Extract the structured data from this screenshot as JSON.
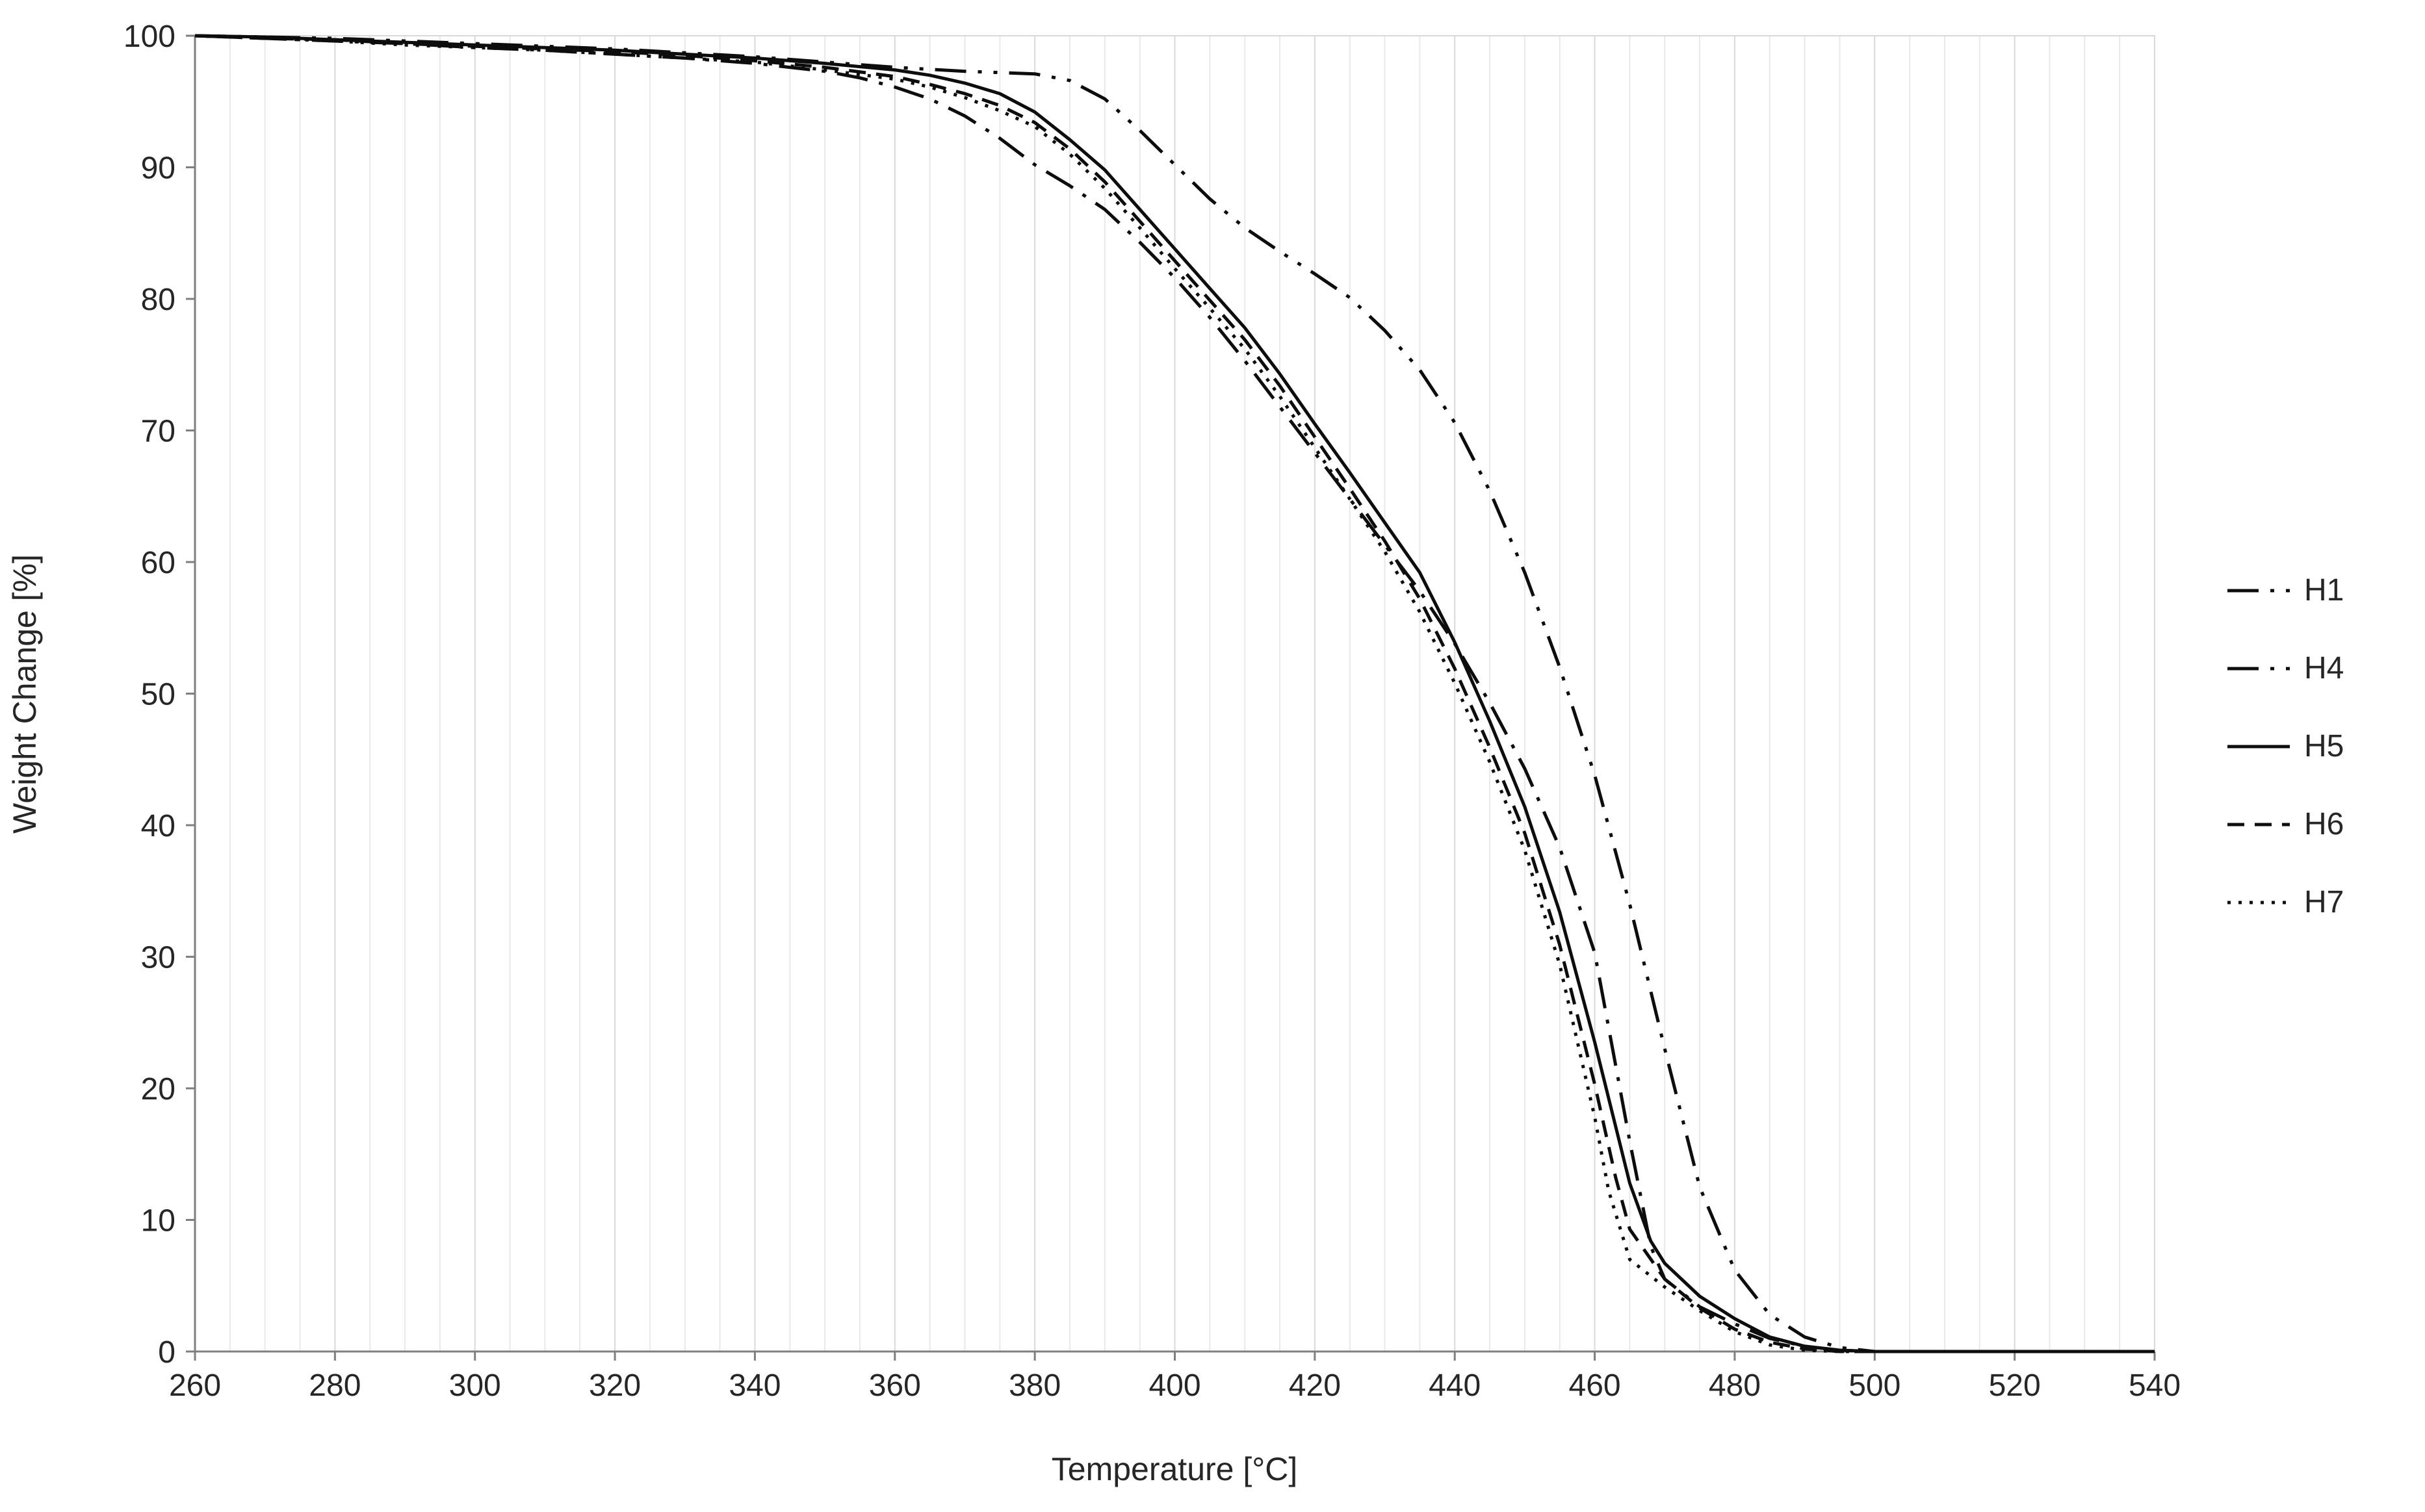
{
  "chart_data": {
    "type": "line",
    "title": "",
    "xlabel": "Temperature [°C]",
    "ylabel": "Weight Change [%]",
    "xlim": [
      260,
      540
    ],
    "ylim": [
      0,
      100
    ],
    "x_ticks": [
      260,
      280,
      300,
      320,
      340,
      360,
      380,
      400,
      420,
      440,
      460,
      480,
      500,
      520,
      540
    ],
    "y_ticks": [
      0,
      10,
      20,
      30,
      40,
      50,
      60,
      70,
      80,
      90,
      100
    ],
    "grid": {
      "vertical_minor_every": 5,
      "vertical_major_every": 20,
      "horizontal": false
    },
    "legend_position": "right",
    "line_color": "#0d0d0d",
    "gridline_minor_color": "#e9e9e9",
    "gridline_major_color": "#d9d9d9",
    "axis_line_color": "#7f7f7f",
    "series": [
      {
        "name": "H1",
        "dash": "dash-dot-dot",
        "points": [
          [
            260,
            100
          ],
          [
            270,
            99.9
          ],
          [
            280,
            99.8
          ],
          [
            290,
            99.6
          ],
          [
            300,
            99.4
          ],
          [
            310,
            99.2
          ],
          [
            320,
            99.0
          ],
          [
            330,
            98.7
          ],
          [
            340,
            98.4
          ],
          [
            350,
            98.0
          ],
          [
            360,
            97.6
          ],
          [
            370,
            97.3
          ],
          [
            375,
            97.2
          ],
          [
            380,
            97.1
          ],
          [
            385,
            96.6
          ],
          [
            390,
            95.2
          ],
          [
            395,
            92.8
          ],
          [
            400,
            90.2
          ],
          [
            405,
            87.6
          ],
          [
            410,
            85.4
          ],
          [
            415,
            83.6
          ],
          [
            420,
            81.9
          ],
          [
            425,
            80.1
          ],
          [
            430,
            77.6
          ],
          [
            435,
            74.6
          ],
          [
            440,
            70.6
          ],
          [
            445,
            65.4
          ],
          [
            450,
            59.2
          ],
          [
            455,
            52.0
          ],
          [
            460,
            43.8
          ],
          [
            465,
            34.0
          ],
          [
            470,
            23.0
          ],
          [
            475,
            12.5
          ],
          [
            480,
            6.2
          ],
          [
            485,
            2.8
          ],
          [
            490,
            1.1
          ],
          [
            495,
            0.3
          ],
          [
            500,
            0
          ],
          [
            510,
            0
          ],
          [
            520,
            0
          ],
          [
            530,
            0
          ],
          [
            540,
            0
          ]
        ]
      },
      {
        "name": "H4",
        "dash": "dash-dot",
        "points": [
          [
            260,
            100
          ],
          [
            270,
            99.8
          ],
          [
            280,
            99.6
          ],
          [
            290,
            99.4
          ],
          [
            300,
            99.1
          ],
          [
            310,
            98.9
          ],
          [
            320,
            98.6
          ],
          [
            330,
            98.3
          ],
          [
            340,
            97.9
          ],
          [
            350,
            97.3
          ],
          [
            355,
            96.8
          ],
          [
            360,
            96.1
          ],
          [
            365,
            95.2
          ],
          [
            370,
            93.9
          ],
          [
            375,
            92.2
          ],
          [
            380,
            90.2
          ],
          [
            385,
            88.6
          ],
          [
            390,
            86.8
          ],
          [
            395,
            84.3
          ],
          [
            400,
            81.6
          ],
          [
            405,
            78.6
          ],
          [
            410,
            75.3
          ],
          [
            415,
            71.8
          ],
          [
            420,
            68.3
          ],
          [
            425,
            64.8
          ],
          [
            430,
            61.3
          ],
          [
            435,
            57.8
          ],
          [
            440,
            53.8
          ],
          [
            445,
            49.3
          ],
          [
            450,
            44.3
          ],
          [
            455,
            38.3
          ],
          [
            460,
            30.3
          ],
          [
            465,
            16.0
          ],
          [
            468,
            8.0
          ],
          [
            470,
            5.5
          ],
          [
            475,
            3.4
          ],
          [
            480,
            2.1
          ],
          [
            485,
            1.0
          ],
          [
            490,
            0.4
          ],
          [
            495,
            0.1
          ],
          [
            500,
            0
          ],
          [
            510,
            0
          ],
          [
            520,
            0
          ],
          [
            530,
            0
          ],
          [
            540,
            0
          ]
        ]
      },
      {
        "name": "H5",
        "dash": "solid",
        "points": [
          [
            260,
            100
          ],
          [
            270,
            99.9
          ],
          [
            280,
            99.7
          ],
          [
            290,
            99.5
          ],
          [
            300,
            99.3
          ],
          [
            310,
            99.1
          ],
          [
            320,
            98.9
          ],
          [
            330,
            98.6
          ],
          [
            340,
            98.3
          ],
          [
            350,
            97.9
          ],
          [
            360,
            97.4
          ],
          [
            365,
            97.0
          ],
          [
            370,
            96.4
          ],
          [
            375,
            95.6
          ],
          [
            380,
            94.2
          ],
          [
            385,
            92.1
          ],
          [
            390,
            89.8
          ],
          [
            395,
            86.8
          ],
          [
            400,
            83.8
          ],
          [
            405,
            80.8
          ],
          [
            410,
            77.8
          ],
          [
            415,
            74.3
          ],
          [
            420,
            70.5
          ],
          [
            425,
            66.8
          ],
          [
            430,
            63.0
          ],
          [
            435,
            59.2
          ],
          [
            440,
            53.9
          ],
          [
            445,
            47.9
          ],
          [
            450,
            41.4
          ],
          [
            455,
            33.4
          ],
          [
            460,
            23.5
          ],
          [
            465,
            12.8
          ],
          [
            468,
            8.4
          ],
          [
            470,
            6.7
          ],
          [
            475,
            4.2
          ],
          [
            480,
            2.5
          ],
          [
            485,
            1.1
          ],
          [
            490,
            0.4
          ],
          [
            495,
            0.1
          ],
          [
            500,
            0
          ],
          [
            510,
            0
          ],
          [
            520,
            0
          ],
          [
            530,
            0
          ],
          [
            540,
            0
          ]
        ]
      },
      {
        "name": "H6",
        "dash": "dash",
        "points": [
          [
            260,
            100
          ],
          [
            270,
            99.8
          ],
          [
            280,
            99.7
          ],
          [
            290,
            99.4
          ],
          [
            300,
            99.2
          ],
          [
            310,
            99.0
          ],
          [
            320,
            98.8
          ],
          [
            330,
            98.5
          ],
          [
            340,
            98.1
          ],
          [
            350,
            97.6
          ],
          [
            360,
            96.9
          ],
          [
            365,
            96.3
          ],
          [
            370,
            95.6
          ],
          [
            375,
            94.7
          ],
          [
            380,
            93.4
          ],
          [
            385,
            91.4
          ],
          [
            390,
            88.9
          ],
          [
            395,
            85.9
          ],
          [
            400,
            82.9
          ],
          [
            405,
            79.9
          ],
          [
            410,
            76.9
          ],
          [
            415,
            73.4
          ],
          [
            420,
            69.5
          ],
          [
            425,
            65.6
          ],
          [
            430,
            61.6
          ],
          [
            435,
            57.2
          ],
          [
            440,
            51.9
          ],
          [
            445,
            45.9
          ],
          [
            450,
            39.4
          ],
          [
            455,
            30.9
          ],
          [
            460,
            20.3
          ],
          [
            463,
            13.2
          ],
          [
            465,
            9.3
          ],
          [
            470,
            5.5
          ],
          [
            475,
            3.3
          ],
          [
            480,
            1.7
          ],
          [
            485,
            0.7
          ],
          [
            490,
            0.2
          ],
          [
            495,
            0
          ],
          [
            500,
            0
          ],
          [
            510,
            0
          ],
          [
            520,
            0
          ],
          [
            530,
            0
          ],
          [
            540,
            0
          ]
        ]
      },
      {
        "name": "H7",
        "dash": "dot",
        "points": [
          [
            260,
            100
          ],
          [
            270,
            99.8
          ],
          [
            280,
            99.6
          ],
          [
            290,
            99.3
          ],
          [
            300,
            99.1
          ],
          [
            310,
            98.9
          ],
          [
            320,
            98.6
          ],
          [
            330,
            98.3
          ],
          [
            340,
            98.0
          ],
          [
            350,
            97.4
          ],
          [
            360,
            96.7
          ],
          [
            365,
            96.1
          ],
          [
            370,
            95.3
          ],
          [
            375,
            94.3
          ],
          [
            380,
            93.1
          ],
          [
            385,
            91.0
          ],
          [
            390,
            88.4
          ],
          [
            395,
            85.4
          ],
          [
            400,
            82.3
          ],
          [
            405,
            79.3
          ],
          [
            410,
            76.2
          ],
          [
            415,
            72.6
          ],
          [
            420,
            68.7
          ],
          [
            425,
            64.8
          ],
          [
            430,
            60.8
          ],
          [
            435,
            56.2
          ],
          [
            440,
            50.8
          ],
          [
            445,
            44.8
          ],
          [
            450,
            38.1
          ],
          [
            455,
            29.4
          ],
          [
            460,
            17.8
          ],
          [
            462,
            12.2
          ],
          [
            465,
            7.0
          ],
          [
            470,
            4.9
          ],
          [
            475,
            3.1
          ],
          [
            480,
            1.5
          ],
          [
            485,
            0.5
          ],
          [
            490,
            0.1
          ],
          [
            495,
            0
          ],
          [
            500,
            0
          ],
          [
            510,
            0
          ],
          [
            520,
            0
          ],
          [
            530,
            0
          ],
          [
            540,
            0
          ]
        ]
      }
    ]
  }
}
